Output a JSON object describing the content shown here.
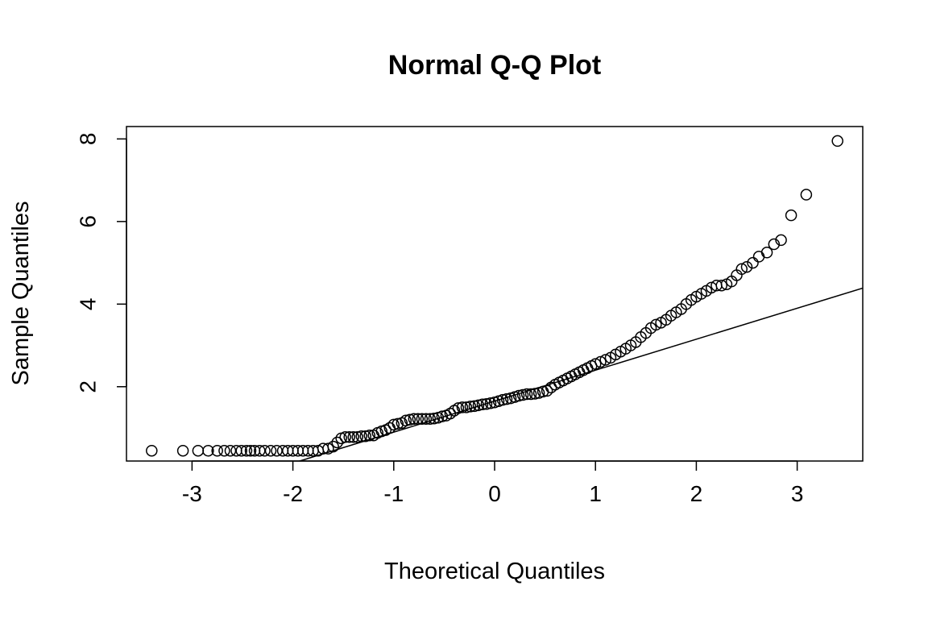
{
  "chart_data": {
    "type": "scatter",
    "title": "Normal Q-Q Plot",
    "xlabel": "Theoretical Quantiles",
    "ylabel": "Sample Quantiles",
    "xlim": [
      -3.65,
      3.65
    ],
    "ylim": [
      0.2,
      8.3
    ],
    "x_ticks": [
      -3,
      -2,
      -1,
      0,
      1,
      2,
      3
    ],
    "x_tick_labels": [
      "-3",
      "-2",
      "-1",
      "0",
      "1",
      "2",
      "3"
    ],
    "y_ticks": [
      2,
      4,
      6,
      8
    ],
    "y_tick_labels": [
      "2",
      "4",
      "6",
      "8"
    ],
    "grid": false,
    "reference_line": {
      "slope": 0.75,
      "intercept": 1.65
    },
    "points": [
      [
        -3.4,
        0.45
      ],
      [
        -3.09,
        0.45
      ],
      [
        -2.94,
        0.45
      ],
      [
        -2.84,
        0.45
      ],
      [
        -2.75,
        0.45
      ],
      [
        -2.68,
        0.45
      ],
      [
        -2.62,
        0.45
      ],
      [
        -2.56,
        0.45
      ],
      [
        -2.51,
        0.45
      ],
      [
        -2.46,
        0.45
      ],
      [
        -2.42,
        0.45
      ],
      [
        -2.38,
        0.45
      ],
      [
        -2.33,
        0.45
      ],
      [
        -2.28,
        0.45
      ],
      [
        -2.22,
        0.45
      ],
      [
        -2.16,
        0.45
      ],
      [
        -2.1,
        0.45
      ],
      [
        -2.05,
        0.45
      ],
      [
        -2.0,
        0.45
      ],
      [
        -1.95,
        0.45
      ],
      [
        -1.9,
        0.45
      ],
      [
        -1.85,
        0.45
      ],
      [
        -1.8,
        0.45
      ],
      [
        -1.75,
        0.45
      ],
      [
        -1.7,
        0.5
      ],
      [
        -1.65,
        0.5
      ],
      [
        -1.6,
        0.55
      ],
      [
        -1.56,
        0.65
      ],
      [
        -1.52,
        0.75
      ],
      [
        -1.48,
        0.78
      ],
      [
        -1.44,
        0.78
      ],
      [
        -1.4,
        0.78
      ],
      [
        -1.36,
        0.78
      ],
      [
        -1.32,
        0.8
      ],
      [
        -1.28,
        0.8
      ],
      [
        -1.24,
        0.82
      ],
      [
        -1.2,
        0.82
      ],
      [
        -1.16,
        0.88
      ],
      [
        -1.12,
        0.92
      ],
      [
        -1.08,
        0.95
      ],
      [
        -1.04,
        1.0
      ],
      [
        -1.0,
        1.08
      ],
      [
        -0.96,
        1.1
      ],
      [
        -0.92,
        1.12
      ],
      [
        -0.88,
        1.18
      ],
      [
        -0.84,
        1.2
      ],
      [
        -0.8,
        1.22
      ],
      [
        -0.76,
        1.22
      ],
      [
        -0.72,
        1.22
      ],
      [
        -0.68,
        1.22
      ],
      [
        -0.64,
        1.22
      ],
      [
        -0.6,
        1.23
      ],
      [
        -0.56,
        1.25
      ],
      [
        -0.52,
        1.28
      ],
      [
        -0.48,
        1.3
      ],
      [
        -0.44,
        1.35
      ],
      [
        -0.4,
        1.42
      ],
      [
        -0.36,
        1.48
      ],
      [
        -0.32,
        1.5
      ],
      [
        -0.28,
        1.5
      ],
      [
        -0.24,
        1.52
      ],
      [
        -0.2,
        1.53
      ],
      [
        -0.16,
        1.55
      ],
      [
        -0.12,
        1.57
      ],
      [
        -0.08,
        1.58
      ],
      [
        -0.04,
        1.6
      ],
      [
        0.0,
        1.62
      ],
      [
        0.04,
        1.65
      ],
      [
        0.08,
        1.68
      ],
      [
        0.12,
        1.7
      ],
      [
        0.16,
        1.72
      ],
      [
        0.2,
        1.75
      ],
      [
        0.24,
        1.78
      ],
      [
        0.28,
        1.8
      ],
      [
        0.32,
        1.82
      ],
      [
        0.36,
        1.82
      ],
      [
        0.4,
        1.83
      ],
      [
        0.44,
        1.85
      ],
      [
        0.48,
        1.88
      ],
      [
        0.52,
        1.9
      ],
      [
        0.56,
        1.98
      ],
      [
        0.6,
        2.05
      ],
      [
        0.64,
        2.1
      ],
      [
        0.68,
        2.15
      ],
      [
        0.72,
        2.2
      ],
      [
        0.76,
        2.25
      ],
      [
        0.8,
        2.3
      ],
      [
        0.84,
        2.35
      ],
      [
        0.88,
        2.4
      ],
      [
        0.92,
        2.45
      ],
      [
        0.96,
        2.5
      ],
      [
        1.0,
        2.55
      ],
      [
        1.05,
        2.6
      ],
      [
        1.1,
        2.65
      ],
      [
        1.15,
        2.7
      ],
      [
        1.2,
        2.78
      ],
      [
        1.25,
        2.85
      ],
      [
        1.3,
        2.92
      ],
      [
        1.35,
        3.0
      ],
      [
        1.4,
        3.08
      ],
      [
        1.45,
        3.2
      ],
      [
        1.5,
        3.3
      ],
      [
        1.55,
        3.42
      ],
      [
        1.6,
        3.5
      ],
      [
        1.65,
        3.55
      ],
      [
        1.7,
        3.62
      ],
      [
        1.75,
        3.72
      ],
      [
        1.8,
        3.8
      ],
      [
        1.85,
        3.88
      ],
      [
        1.9,
        4.0
      ],
      [
        1.95,
        4.1
      ],
      [
        2.0,
        4.18
      ],
      [
        2.05,
        4.25
      ],
      [
        2.1,
        4.32
      ],
      [
        2.15,
        4.4
      ],
      [
        2.2,
        4.45
      ],
      [
        2.25,
        4.45
      ],
      [
        2.3,
        4.48
      ],
      [
        2.35,
        4.55
      ],
      [
        2.4,
        4.7
      ],
      [
        2.45,
        4.85
      ],
      [
        2.5,
        4.9
      ],
      [
        2.56,
        5.0
      ],
      [
        2.62,
        5.15
      ],
      [
        2.7,
        5.25
      ],
      [
        2.77,
        5.45
      ],
      [
        2.84,
        5.55
      ],
      [
        2.94,
        6.15
      ],
      [
        3.09,
        6.65
      ],
      [
        3.4,
        7.95
      ]
    ]
  }
}
